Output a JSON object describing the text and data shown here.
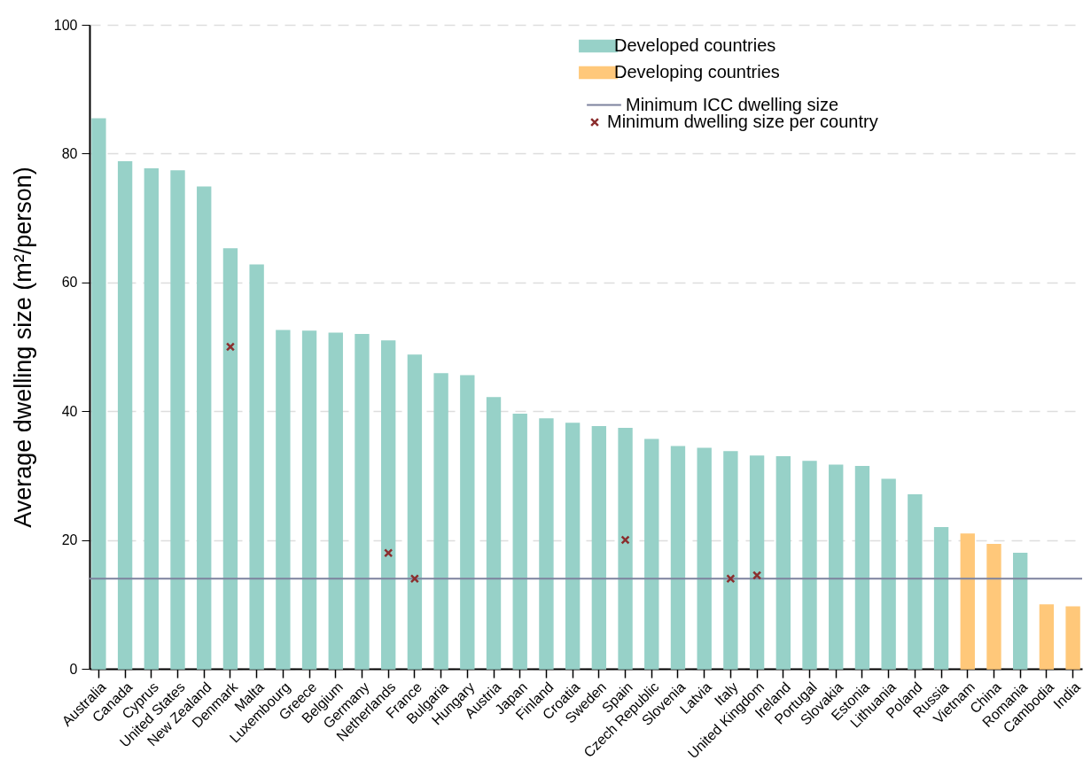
{
  "chart_data": {
    "type": "bar",
    "ylabel": "Average dwelling size (m²/person)",
    "categories": [
      "Australia",
      "Canada",
      "Cyprus",
      "United States",
      "New Zealand",
      "Denmark",
      "Malta",
      "Luxembourg",
      "Greece",
      "Belgium",
      "Germany",
      "Netherlands",
      "France",
      "Bulgaria",
      "Hungary",
      "Austria",
      "Japan",
      "Finland",
      "Croatia",
      "Sweden",
      "Spain",
      "Czech Republic",
      "Slovenia",
      "Latvia",
      "Italy",
      "United Kingdom",
      "Ireland",
      "Portugal",
      "Slovakia",
      "Estonia",
      "Lithuania",
      "Poland",
      "Russia",
      "Vietnam",
      "China",
      "Romania",
      "Cambodia",
      "India"
    ],
    "series": [
      {
        "name": "Developed countries",
        "color": "#97d1c8",
        "values": [
          85.4,
          78.7,
          77.6,
          77.3,
          74.8,
          65.2,
          62.7,
          52.5,
          52.4,
          52.1,
          51.9,
          50.9,
          48.7,
          45.8,
          45.5,
          42.1,
          39.5,
          38.8,
          38.1,
          37.6,
          37.3,
          35.6,
          34.5,
          34.2,
          33.7,
          33.0,
          32.9,
          32.2,
          31.6,
          31.4,
          29.4,
          27.0,
          21.9,
          null,
          null,
          17.9,
          null,
          null
        ]
      },
      {
        "name": "Developing countries",
        "color": "#ffc87a",
        "values": [
          null,
          null,
          null,
          null,
          null,
          null,
          null,
          null,
          null,
          null,
          null,
          null,
          null,
          null,
          null,
          null,
          null,
          null,
          null,
          null,
          null,
          null,
          null,
          null,
          null,
          null,
          null,
          null,
          null,
          null,
          null,
          null,
          null,
          20.9,
          19.3,
          null,
          9.9,
          9.6
        ]
      },
      {
        "name": "Minimum dwelling size per country",
        "type": "scatter",
        "color": "#8b2e2e",
        "marker": "cross",
        "values": [
          null,
          null,
          null,
          null,
          null,
          50,
          null,
          null,
          null,
          null,
          null,
          18,
          14,
          null,
          null,
          null,
          null,
          null,
          null,
          null,
          20,
          null,
          null,
          null,
          14,
          14.5,
          null,
          null,
          null,
          null,
          null,
          null,
          null,
          null,
          null,
          null,
          null,
          null
        ]
      }
    ],
    "ref_lines": [
      {
        "axis": "y",
        "value": 14,
        "label": "Minimum ICC dwelling size",
        "color": "#7d829e"
      }
    ],
    "ylim": [
      0,
      100
    ],
    "yticks": [
      0,
      20,
      40,
      60,
      80,
      100
    ],
    "grid": "y",
    "legend": "top right"
  }
}
